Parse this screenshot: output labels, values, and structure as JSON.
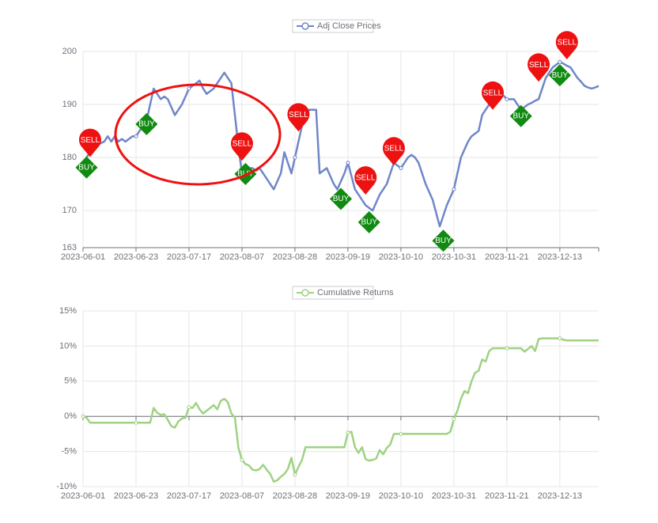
{
  "chart_data": [
    {
      "type": "line",
      "categories": [
        "2023-06-01",
        null,
        null,
        null,
        null,
        null,
        null,
        null,
        null,
        null,
        null,
        null,
        null,
        null,
        null,
        "2023-06-23",
        null,
        null,
        null,
        null,
        null,
        null,
        null,
        null,
        null,
        null,
        null,
        null,
        null,
        null,
        "2023-07-17",
        null,
        null,
        null,
        null,
        null,
        null,
        null,
        null,
        null,
        null,
        null,
        null,
        null,
        null,
        "2023-08-07",
        null,
        null,
        null,
        null,
        null,
        null,
        null,
        null,
        null,
        null,
        null,
        null,
        null,
        null,
        "2023-08-28",
        null,
        null,
        null,
        null,
        null,
        null,
        null,
        null,
        null,
        null,
        null,
        null,
        null,
        null,
        "2023-09-19",
        null,
        null,
        null,
        null,
        null,
        null,
        null,
        null,
        null,
        null,
        null,
        null,
        null,
        null,
        "2023-10-10",
        null,
        null,
        null,
        null,
        null,
        null,
        null,
        null,
        null,
        null,
        null,
        null,
        null,
        null,
        "2023-10-31",
        null,
        null,
        null,
        null,
        null,
        null,
        null,
        null,
        null,
        null,
        null,
        null,
        null,
        null,
        "2023-11-21",
        null,
        null,
        null,
        null,
        null,
        null,
        null,
        null,
        null,
        null,
        null,
        null,
        null,
        null,
        "2023-12-13",
        null,
        null,
        null,
        null,
        null,
        null,
        null,
        null,
        null,
        null,
        null
      ],
      "series": [
        {
          "name": "Adj Close Prices",
          "color": "#6f86c8",
          "values": [
            179,
            180,
            181,
            182,
            182.3,
            182.7,
            183,
            184,
            183,
            184,
            183,
            183.5,
            183,
            183.5,
            184,
            184,
            185,
            186,
            187,
            190,
            193,
            192,
            191,
            191.5,
            191,
            189.5,
            188,
            189,
            190,
            191.5,
            193,
            193.5,
            194,
            194.5,
            193,
            192,
            192.5,
            193,
            194,
            195,
            196,
            195,
            194,
            188,
            182,
            177,
            177.5,
            178,
            178,
            177.5,
            178,
            177,
            176,
            175,
            174,
            175.5,
            177,
            181,
            179,
            177,
            180,
            183,
            186,
            187.5,
            189,
            189,
            189,
            177,
            177.5,
            178,
            176.5,
            175,
            174,
            175.5,
            177,
            179,
            176.5,
            174,
            173,
            172,
            171,
            170.5,
            170,
            171.5,
            173,
            174,
            175,
            177,
            179,
            178.5,
            178,
            179,
            180,
            180.5,
            180,
            179,
            177,
            175,
            173.5,
            172,
            169.5,
            167,
            169,
            171,
            172.5,
            174,
            177,
            180,
            181.5,
            183,
            184,
            184.5,
            185,
            188,
            189,
            190,
            191.5,
            193,
            192.3,
            191.7,
            191,
            191,
            191,
            190,
            189,
            189.5,
            190,
            190.3,
            190.7,
            191,
            193,
            195,
            196,
            197,
            197.5,
            198,
            197.7,
            197.3,
            197,
            196,
            195,
            194.3,
            193.5,
            193.2,
            193,
            193.2,
            193.5
          ]
        }
      ],
      "signals": [
        {
          "label": "BUY",
          "index": 1,
          "value": 178.1,
          "color": "#118a11"
        },
        {
          "label": "SELL",
          "index": 2,
          "value": 180.1,
          "color": "#ee1111"
        },
        {
          "label": "BUY",
          "index": 18,
          "value": 186.3,
          "color": "#118a11"
        },
        {
          "label": "SELL",
          "index": 45,
          "value": 179.4,
          "color": "#ee1111"
        },
        {
          "label": "BUY",
          "index": 46,
          "value": 176.9,
          "color": "#118a11"
        },
        {
          "label": "SELL",
          "index": 61,
          "value": 184.9,
          "color": "#ee1111"
        },
        {
          "label": "BUY",
          "index": 73,
          "value": 172.2,
          "color": "#118a11"
        },
        {
          "label": "SELL",
          "index": 80,
          "value": 173,
          "color": "#ee1111"
        },
        {
          "label": "BUY",
          "index": 81,
          "value": 167.8,
          "color": "#118a11"
        },
        {
          "label": "SELL",
          "index": 88,
          "value": 178.5,
          "color": "#ee1111"
        },
        {
          "label": "BUY",
          "index": 102,
          "value": 164.3,
          "color": "#118a11"
        },
        {
          "label": "SELL",
          "index": 116,
          "value": 189,
          "color": "#ee1111"
        },
        {
          "label": "BUY",
          "index": 124,
          "value": 187.8,
          "color": "#118a11"
        },
        {
          "label": "SELL",
          "index": 129,
          "value": 194.3,
          "color": "#ee1111"
        },
        {
          "label": "BUY",
          "index": 135,
          "value": 195.5,
          "color": "#118a11"
        },
        {
          "label": "SELL",
          "index": 137,
          "value": 198.5,
          "color": "#ee1111"
        }
      ],
      "ylim": [
        163,
        200
      ],
      "yticks": [
        163,
        170,
        180,
        190,
        200
      ],
      "grid": true
    },
    {
      "type": "line",
      "categories": [
        "2023-06-01",
        null,
        null,
        null,
        null,
        null,
        null,
        null,
        null,
        null,
        null,
        null,
        null,
        null,
        null,
        "2023-06-23",
        null,
        null,
        null,
        null,
        null,
        null,
        null,
        null,
        null,
        null,
        null,
        null,
        null,
        null,
        "2023-07-17",
        null,
        null,
        null,
        null,
        null,
        null,
        null,
        null,
        null,
        null,
        null,
        null,
        null,
        null,
        "2023-08-07",
        null,
        null,
        null,
        null,
        null,
        null,
        null,
        null,
        null,
        null,
        null,
        null,
        null,
        null,
        "2023-08-28",
        null,
        null,
        null,
        null,
        null,
        null,
        null,
        null,
        null,
        null,
        null,
        null,
        null,
        null,
        "2023-09-19",
        null,
        null,
        null,
        null,
        null,
        null,
        null,
        null,
        null,
        null,
        null,
        null,
        null,
        null,
        "2023-10-10",
        null,
        null,
        null,
        null,
        null,
        null,
        null,
        null,
        null,
        null,
        null,
        null,
        null,
        null,
        "2023-10-31",
        null,
        null,
        null,
        null,
        null,
        null,
        null,
        null,
        null,
        null,
        null,
        null,
        null,
        null,
        "2023-11-21",
        null,
        null,
        null,
        null,
        null,
        null,
        null,
        null,
        null,
        null,
        null,
        null,
        null,
        null,
        "2023-12-13",
        null,
        null,
        null,
        null,
        null,
        null,
        null,
        null,
        null,
        null,
        null
      ],
      "series": [
        {
          "name": "Cumulative Returns",
          "color": "#9fd283",
          "values": [
            0,
            -0.2,
            -0.9,
            -0.9,
            -0.9,
            -0.9,
            -0.9,
            -0.9,
            -0.9,
            -0.9,
            -0.9,
            -0.9,
            -0.9,
            -0.9,
            -0.9,
            -0.9,
            -0.9,
            -0.9,
            -0.9,
            -0.9,
            1.2,
            0.5,
            0.2,
            0.3,
            -0.5,
            -1.4,
            -1.6,
            -0.7,
            -0.3,
            -0.2,
            1.3,
            1.2,
            1.9,
            1.0,
            0.4,
            0.8,
            1.2,
            1.6,
            1.0,
            2.2,
            2.5,
            2.0,
            0.4,
            -0.2,
            -4.5,
            -6.2,
            -6.8,
            -7.0,
            -7.6,
            -7.7,
            -7.5,
            -6.9,
            -7.6,
            -8.2,
            -9.3,
            -9.1,
            -8.6,
            -8.2,
            -7.5,
            -5.9,
            -8.3,
            -7.2,
            -6.2,
            -4.4,
            -4.4,
            -4.4,
            -4.4,
            -4.4,
            -4.4,
            -4.4,
            -4.4,
            -4.4,
            -4.4,
            -4.4,
            -4.4,
            -2.3,
            -2.2,
            -4.4,
            -5.2,
            -4.4,
            -6.1,
            -6.3,
            -6.2,
            -6.0,
            -4.8,
            -5.4,
            -4.5,
            -4.0,
            -2.5,
            -2.5,
            -2.5,
            -2.5,
            -2.5,
            -2.5,
            -2.5,
            -2.5,
            -2.5,
            -2.5,
            -2.5,
            -2.5,
            -2.5,
            -2.5,
            -2.5,
            -2.5,
            -2.2,
            -0.4,
            0.8,
            2.5,
            3.6,
            3.3,
            5.0,
            6.2,
            6.5,
            8.1,
            7.8,
            9.3,
            9.7,
            9.7,
            9.7,
            9.7,
            9.7,
            9.7,
            9.7,
            9.7,
            9.7,
            9.2,
            9.6,
            10.0,
            9.3,
            11.0,
            11.1,
            11.1,
            11.1,
            11.1,
            11.1,
            11.1,
            10.9,
            10.8,
            10.8,
            10.8,
            10.8,
            10.8,
            10.8,
            10.8,
            10.8,
            10.8,
            10.8
          ]
        }
      ],
      "ylim": [
        -10,
        15
      ],
      "yticks": [
        {
          "value": -10,
          "label": "-10%"
        },
        {
          "value": -5,
          "label": "-5%"
        },
        {
          "value": 0,
          "label": "0%"
        },
        {
          "value": 5,
          "label": "5%"
        },
        {
          "value": 10,
          "label": "10%"
        },
        {
          "value": 15,
          "label": "15%"
        }
      ],
      "grid": true
    }
  ]
}
